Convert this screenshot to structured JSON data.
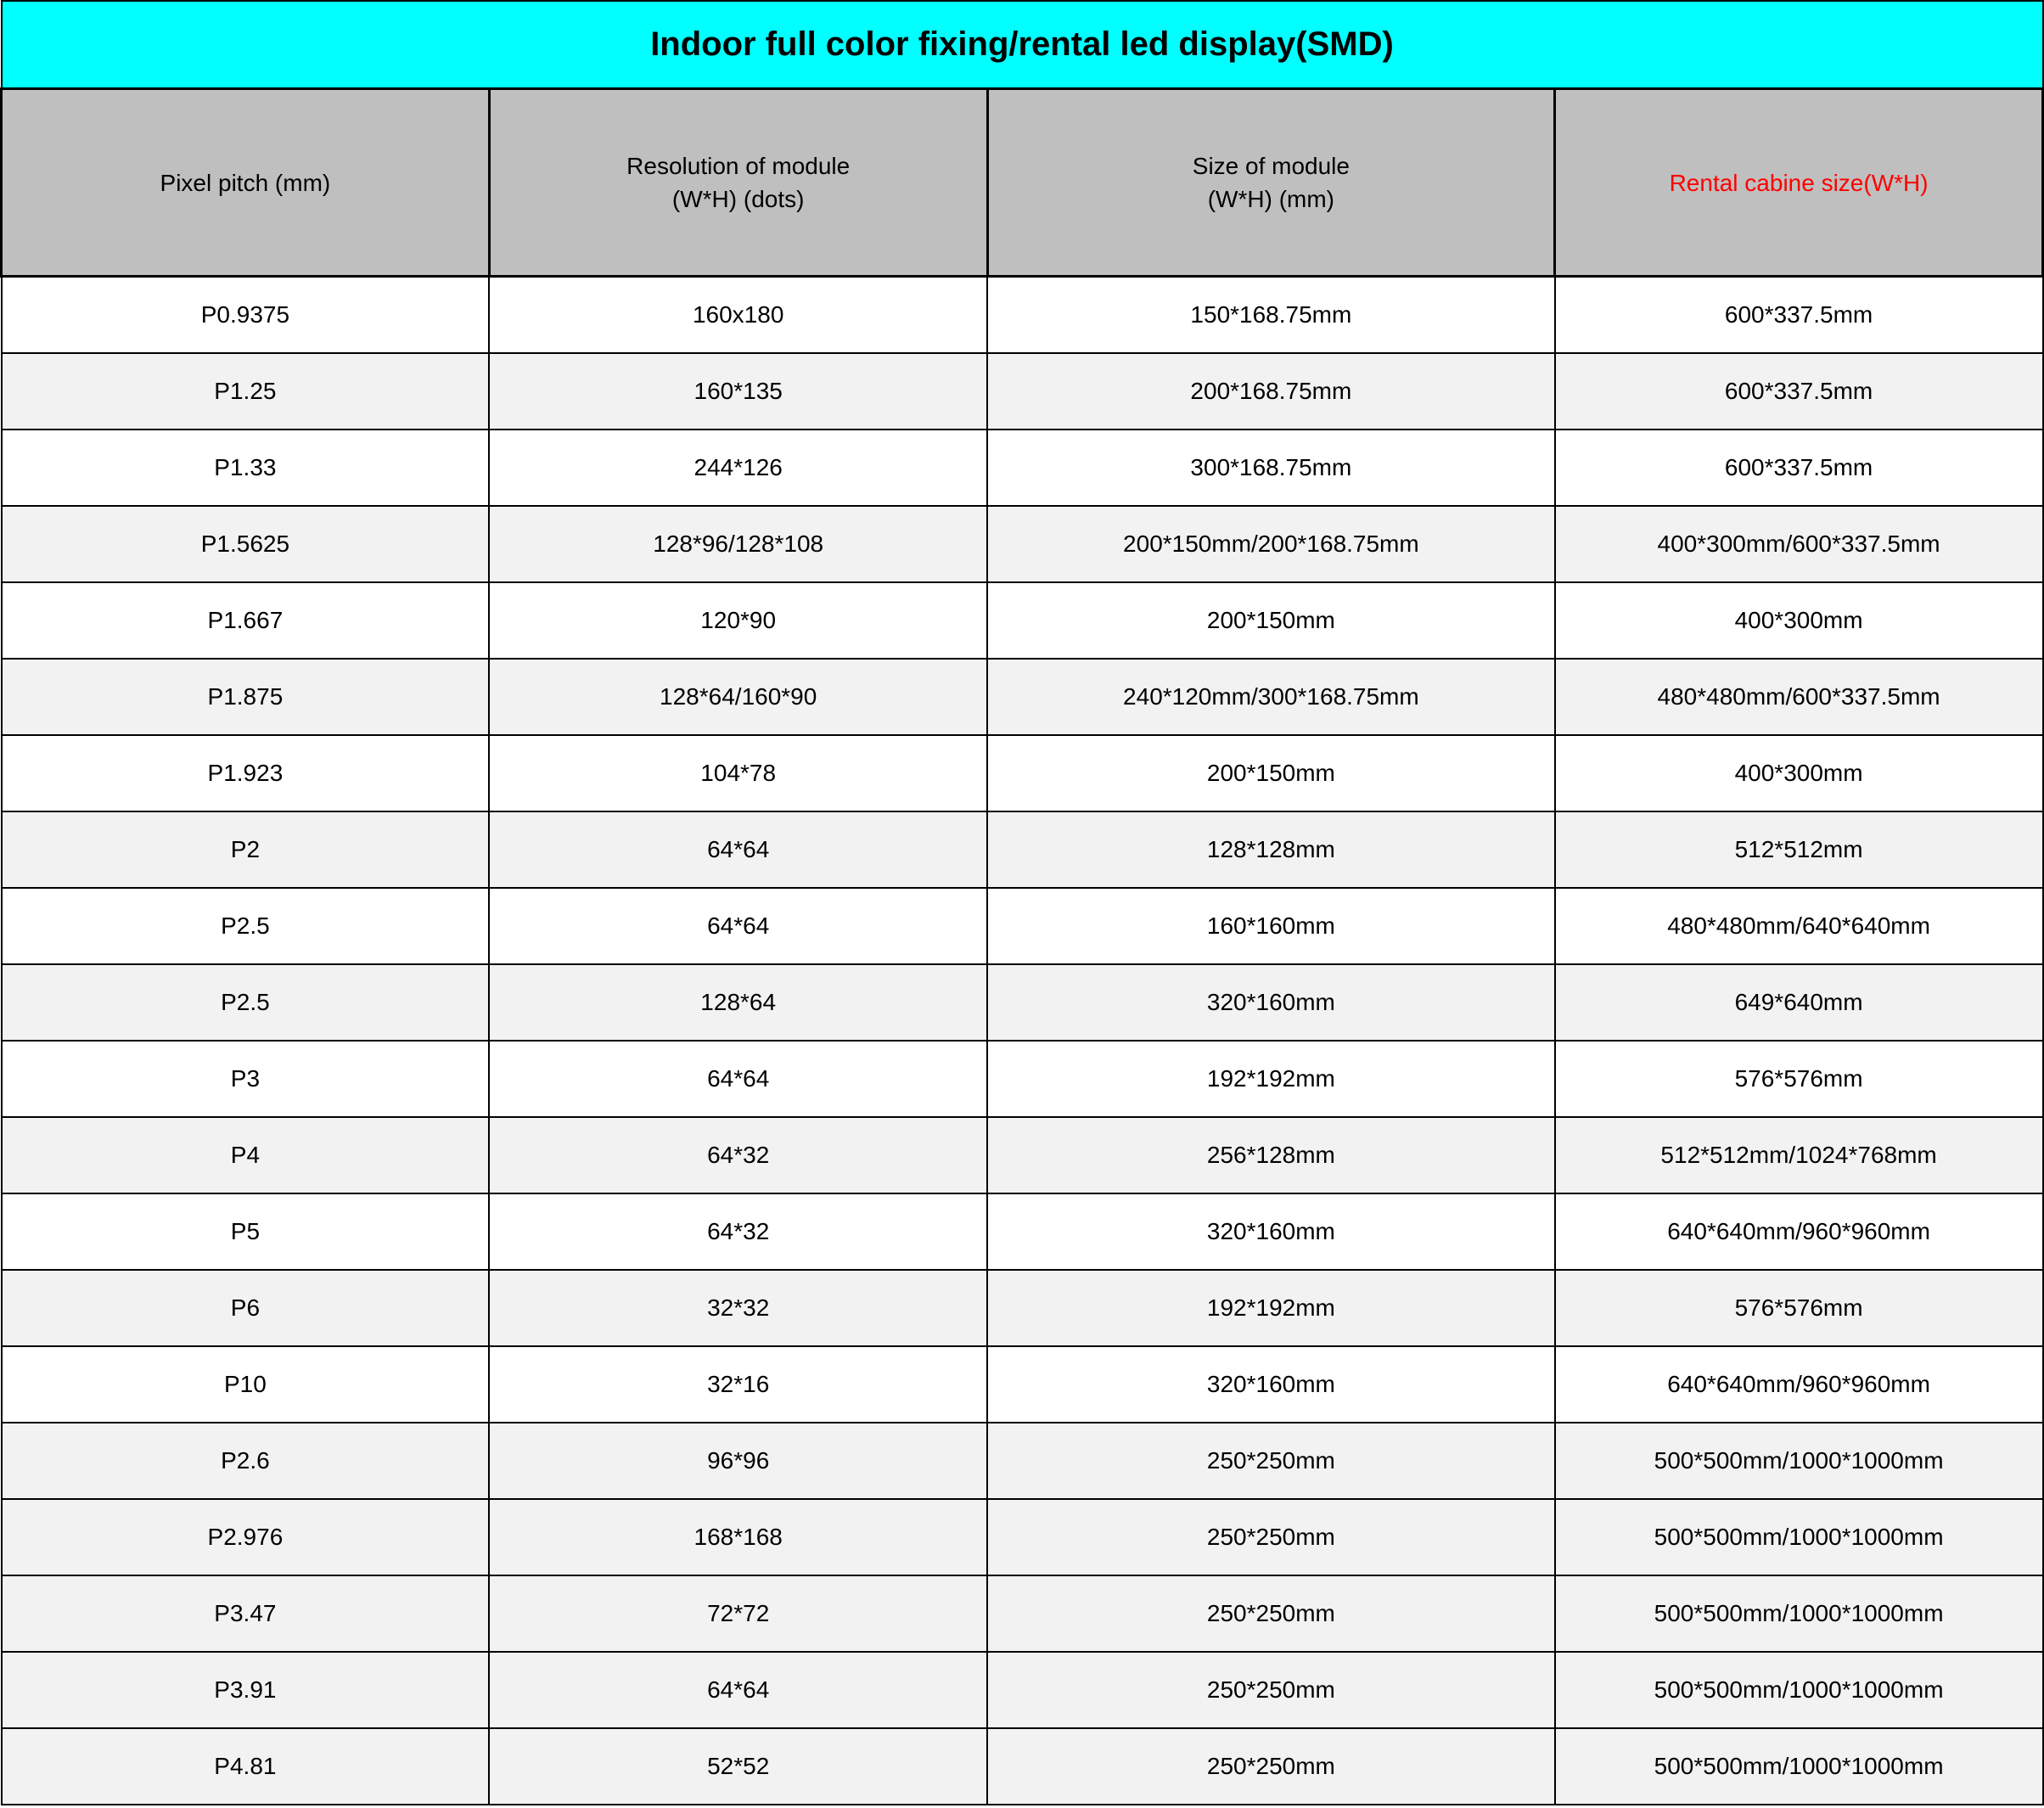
{
  "title": "Indoor full color fixing/rental led display(SMD)",
  "columns": [
    {
      "label": "Pixel pitch (mm)",
      "red": false
    },
    {
      "label": "Resolution of module\n(W*H) (dots)",
      "red": false
    },
    {
      "label": "Size of module\n(W*H) (mm)",
      "red": false
    },
    {
      "label": "Rental cabine size(W*H)",
      "red": true
    }
  ],
  "rows": [
    {
      "bg": "white",
      "cells": [
        "P0.9375",
        "160x180",
        "150*168.75mm",
        "600*337.5mm"
      ]
    },
    {
      "bg": "gray",
      "cells": [
        "P1.25",
        "160*135",
        "200*168.75mm",
        "600*337.5mm"
      ]
    },
    {
      "bg": "white",
      "cells": [
        "P1.33",
        "244*126",
        "300*168.75mm",
        "600*337.5mm"
      ]
    },
    {
      "bg": "gray",
      "cells": [
        "P1.5625",
        "128*96/128*108",
        "200*150mm/200*168.75mm",
        "400*300mm/600*337.5mm"
      ]
    },
    {
      "bg": "white",
      "cells": [
        "P1.667",
        "120*90",
        "200*150mm",
        "400*300mm"
      ]
    },
    {
      "bg": "gray",
      "cells": [
        "P1.875",
        "128*64/160*90",
        "240*120mm/300*168.75mm",
        "480*480mm/600*337.5mm"
      ]
    },
    {
      "bg": "white",
      "cells": [
        "P1.923",
        "104*78",
        "200*150mm",
        "400*300mm"
      ]
    },
    {
      "bg": "gray",
      "cells": [
        "P2",
        "64*64",
        "128*128mm",
        "512*512mm"
      ]
    },
    {
      "bg": "white",
      "cells": [
        "P2.5",
        "64*64",
        "160*160mm",
        "480*480mm/640*640mm"
      ]
    },
    {
      "bg": "gray",
      "cells": [
        "P2.5",
        "128*64",
        "320*160mm",
        "649*640mm"
      ]
    },
    {
      "bg": "white",
      "cells": [
        "P3",
        "64*64",
        "192*192mm",
        "576*576mm"
      ]
    },
    {
      "bg": "gray",
      "cells": [
        "P4",
        "64*32",
        "256*128mm",
        "512*512mm/1024*768mm"
      ]
    },
    {
      "bg": "white",
      "cells": [
        "P5",
        "64*32",
        "320*160mm",
        "640*640mm/960*960mm"
      ]
    },
    {
      "bg": "gray",
      "cells": [
        "P6",
        "32*32",
        "192*192mm",
        "576*576mm"
      ]
    },
    {
      "bg": "white",
      "cells": [
        "P10",
        "32*16",
        "320*160mm",
        "640*640mm/960*960mm"
      ]
    },
    {
      "bg": "gray",
      "cells": [
        "P2.6",
        "96*96",
        "250*250mm",
        "500*500mm/1000*1000mm"
      ]
    },
    {
      "bg": "gray",
      "cells": [
        "P2.976",
        "168*168",
        "250*250mm",
        "500*500mm/1000*1000mm"
      ]
    },
    {
      "bg": "gray",
      "cells": [
        "P3.47",
        "72*72",
        "250*250mm",
        "500*500mm/1000*1000mm"
      ]
    },
    {
      "bg": "gray",
      "cells": [
        "P3.91",
        "64*64",
        "250*250mm",
        "500*500mm/1000*1000mm"
      ]
    },
    {
      "bg": "gray",
      "cells": [
        "P4.81",
        "52*52",
        "250*250mm",
        "500*500mm/1000*1000mm"
      ]
    }
  ],
  "colors": {
    "title_bg": "#00ffff",
    "header_bg": "#bfbfbf",
    "row_white": "#ffffff",
    "row_gray": "#f2f2f2",
    "border": "#000000",
    "text": "#000000",
    "red_text": "#ff0000"
  },
  "typography": {
    "title_pt": 40,
    "header_pt": 28,
    "body_pt": 28,
    "family": "Arial"
  }
}
